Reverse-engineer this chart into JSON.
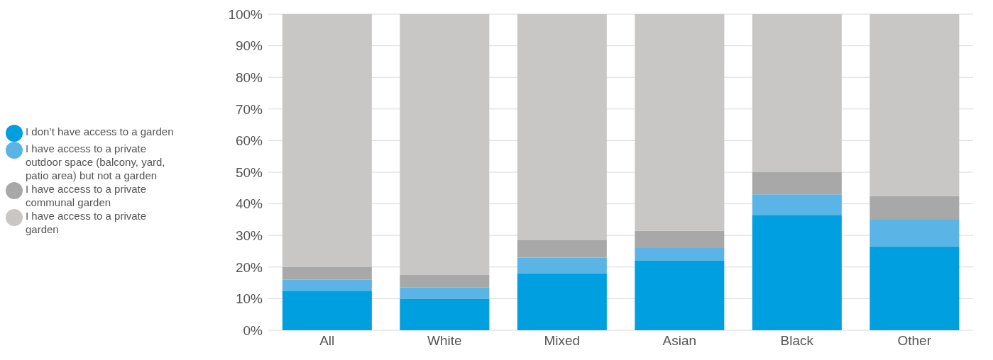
{
  "chart_data": {
    "type": "bar",
    "stacked": true,
    "categories": [
      "All",
      "White",
      "Mixed",
      "Asian",
      "Black",
      "Other"
    ],
    "series": [
      {
        "name": "I don’t have access to a garden",
        "color": "#009fdf",
        "values": [
          12.5,
          10,
          18,
          22,
          36.5,
          26.5
        ]
      },
      {
        "name": "I have access to a private outdoor space (balcony, yard, patio area) but not a garden",
        "color": "#5ab4e5",
        "values": [
          3.5,
          3.5,
          5,
          4,
          6.5,
          8.5
        ]
      },
      {
        "name": "I have access to a private communal garden",
        "color": "#a8a8a8",
        "values": [
          4,
          4,
          5.5,
          5.5,
          7,
          7.5
        ]
      },
      {
        "name": "I have access to a private garden",
        "color": "#c8c7c5",
        "values": [
          80,
          82.5,
          71.5,
          68.5,
          50,
          57.5
        ]
      }
    ],
    "ylim": [
      0,
      100
    ],
    "yticks": [
      {
        "value": 0,
        "label": "0%"
      },
      {
        "value": 10,
        "label": "10%"
      },
      {
        "value": 20,
        "label": "20%"
      },
      {
        "value": 30,
        "label": "30%"
      },
      {
        "value": 40,
        "label": "40%"
      },
      {
        "value": 50,
        "label": "50%"
      },
      {
        "value": 60,
        "label": "60%"
      },
      {
        "value": 70,
        "label": "70%"
      },
      {
        "value": 80,
        "label": "80%"
      },
      {
        "value": 90,
        "label": "90%"
      },
      {
        "value": 100,
        "label": "100%"
      }
    ],
    "grid": "y",
    "legend": "left"
  }
}
